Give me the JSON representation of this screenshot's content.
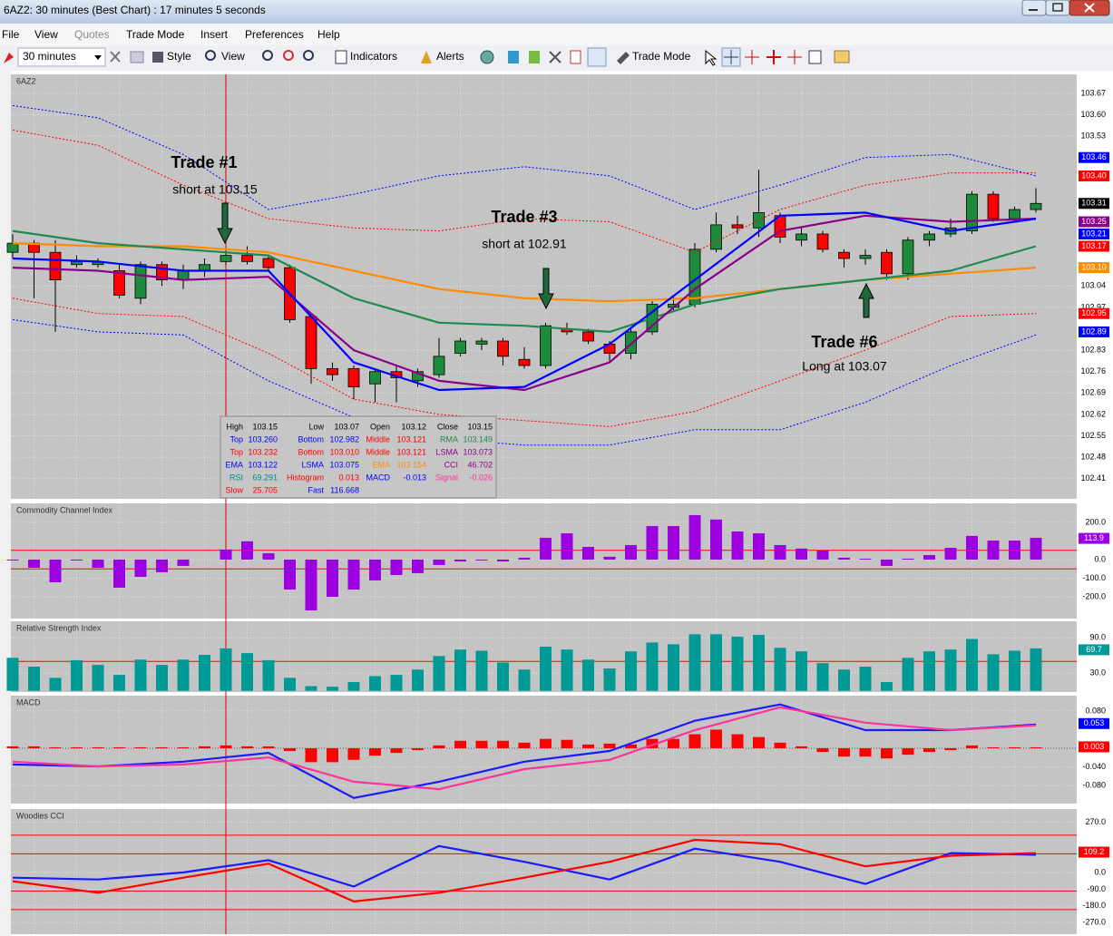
{
  "window": {
    "title": "6AZ2: 30 minutes (Best Chart) : 17 minutes 5 seconds"
  },
  "menu": [
    "File",
    "View",
    "Quotes",
    "Trade Mode",
    "Insert",
    "Preferences",
    "Help"
  ],
  "toolbar": {
    "timeframe": "30 minutes",
    "buttons": [
      "Style",
      "View",
      "Indicators",
      "Alerts",
      "Trade Mode"
    ]
  },
  "chart_data": [
    {
      "type": "candlestick",
      "label": "6AZ2",
      "open": [
        103.15,
        103.18,
        103.15,
        103.11,
        103.11,
        103.09,
        103.0,
        103.11,
        103.06,
        103.09,
        103.12,
        103.14,
        103.13,
        103.1,
        102.94,
        102.77,
        102.77,
        102.72,
        102.76,
        102.73,
        102.75,
        102.82,
        102.85,
        102.86,
        102.8,
        102.78,
        102.9,
        102.89,
        102.85,
        102.82,
        102.89,
        102.97,
        102.98,
        103.16,
        103.24,
        103.23,
        103.27,
        103.19,
        103.21,
        103.15,
        103.13,
        103.15,
        103.08,
        103.19,
        103.21,
        103.22,
        103.34,
        103.26,
        103.29
      ],
      "high": [
        103.21,
        103.19,
        103.19,
        103.14,
        103.13,
        103.11,
        103.12,
        103.12,
        103.11,
        103.13,
        103.16,
        103.17,
        103.14,
        103.11,
        102.95,
        102.79,
        102.78,
        102.77,
        102.78,
        102.77,
        102.87,
        102.87,
        102.87,
        102.87,
        102.84,
        102.92,
        102.92,
        102.9,
        102.86,
        102.9,
        102.99,
        103.01,
        103.18,
        103.28,
        103.27,
        103.42,
        103.28,
        103.23,
        103.22,
        103.16,
        103.16,
        103.16,
        103.2,
        103.22,
        103.26,
        103.35,
        103.35,
        103.3,
        103.36
      ],
      "low": [
        103.13,
        103.0,
        102.89,
        103.1,
        103.1,
        103.0,
        102.98,
        103.04,
        103.03,
        103.07,
        103.11,
        103.11,
        103.09,
        102.92,
        102.72,
        102.73,
        102.67,
        102.66,
        102.66,
        102.71,
        102.74,
        102.81,
        102.83,
        102.78,
        102.77,
        102.77,
        102.88,
        102.85,
        102.79,
        102.8,
        102.88,
        102.96,
        102.97,
        103.15,
        103.21,
        103.2,
        103.18,
        103.17,
        103.15,
        103.1,
        103.11,
        103.06,
        103.06,
        103.17,
        103.2,
        103.21,
        103.25,
        103.25,
        103.28
      ],
      "close": [
        103.18,
        103.15,
        103.06,
        103.12,
        103.12,
        103.01,
        103.11,
        103.06,
        103.09,
        103.11,
        103.14,
        103.12,
        103.1,
        102.93,
        102.77,
        102.75,
        102.71,
        102.76,
        102.74,
        102.76,
        102.81,
        102.86,
        102.86,
        102.81,
        102.78,
        102.91,
        102.89,
        102.86,
        102.82,
        102.89,
        102.98,
        102.98,
        103.16,
        103.24,
        103.23,
        103.28,
        103.2,
        103.21,
        103.16,
        103.13,
        103.14,
        103.08,
        103.19,
        103.21,
        103.23,
        103.34,
        103.26,
        103.29,
        103.31
      ],
      "up_color": "#1e8a3c",
      "down_color": "#ff0000",
      "series": [
        {
          "color": "#0000ff",
          "style": "dotted",
          "values": [
            103.63,
            103.59,
            103.47,
            103.29,
            103.34,
            103.4,
            103.43,
            103.4,
            103.29,
            103.37,
            103.46,
            103.47,
            103.4
          ]
        },
        {
          "color": "#ff0000",
          "style": "dotted",
          "values": [
            103.55,
            103.5,
            103.37,
            103.26,
            103.23,
            103.22,
            103.26,
            103.25,
            103.15,
            103.29,
            103.37,
            103.41,
            103.41
          ]
        },
        {
          "color": "#ff0000",
          "style": "dotted",
          "values": [
            103.0,
            102.95,
            102.94,
            102.82,
            102.67,
            102.62,
            102.6,
            102.58,
            102.63,
            102.73,
            102.83,
            102.94,
            102.95
          ]
        },
        {
          "color": "#0000ff",
          "style": "dotted",
          "values": [
            102.93,
            102.89,
            102.88,
            102.73,
            102.61,
            102.54,
            102.52,
            102.52,
            102.57,
            102.57,
            102.66,
            102.78,
            102.88
          ]
        },
        {
          "color": "#ff8c00",
          "style": "solid",
          "values": [
            103.18,
            103.17,
            103.17,
            103.15,
            103.09,
            103.03,
            103.0,
            102.99,
            103.0,
            103.03,
            103.06,
            103.08,
            103.1
          ]
        },
        {
          "color": "#1e8a50",
          "style": "solid",
          "values": [
            103.22,
            103.18,
            103.16,
            103.14,
            103.0,
            102.92,
            102.91,
            102.89,
            102.98,
            103.03,
            103.06,
            103.09,
            103.17
          ]
        },
        {
          "color": "#8b008b",
          "style": "solid",
          "values": [
            103.1,
            103.09,
            103.06,
            103.07,
            102.83,
            102.73,
            102.7,
            102.79,
            103.03,
            103.22,
            103.27,
            103.25,
            103.26
          ]
        },
        {
          "color": "#0000ff",
          "style": "solid",
          "values": [
            103.13,
            103.12,
            103.09,
            103.09,
            102.79,
            102.7,
            102.71,
            102.85,
            103.06,
            103.27,
            103.28,
            103.22,
            103.26
          ]
        }
      ],
      "ylim": [
        102.344,
        103.732
      ],
      "yticks": [
        103.67,
        {
          "value": 103.6,
          "label": "103.60"
        },
        103.53,
        103.04,
        102.97,
        102.83,
        102.76,
        102.69,
        102.62,
        102.55,
        102.48,
        102.41
      ],
      "tags": [
        {
          "value": 103.46,
          "color": "#0000ff"
        },
        {
          "value": 103.4,
          "label": "103.40",
          "color": "#ff0000"
        },
        {
          "value": 103.31,
          "color": "#000000"
        },
        {
          "value": 103.25,
          "color": "#8b008b"
        },
        {
          "value": 103.21,
          "color": "#0000ff"
        },
        {
          "value": 103.17,
          "color": "#ff0000"
        },
        {
          "value": 103.1,
          "label": "103.10",
          "color": "#ff8c00"
        },
        {
          "value": 102.95,
          "color": "#ff0000"
        },
        {
          "value": 102.89,
          "color": "#0000ff"
        }
      ],
      "annotations": [
        {
          "title": "Trade #1",
          "text": "short at 103.15"
        },
        {
          "title": "Trade #3",
          "text": "short at 102.91"
        },
        {
          "title": "Trade #6",
          "text": "Long at 103.07"
        }
      ]
    },
    {
      "type": "bar",
      "label": "Commodity Channel Index",
      "color": "#9d00e0",
      "values": [
        -5,
        -44,
        -122,
        -5,
        -44,
        -151,
        -93,
        -68,
        -34,
        0,
        54,
        98,
        34,
        -161,
        -273,
        -200,
        -161,
        -112,
        -83,
        -73,
        -29,
        -10,
        -5,
        -10,
        10,
        117,
        141,
        68,
        15,
        78,
        180,
        180,
        239,
        215,
        151,
        141,
        78,
        59,
        49,
        10,
        5,
        -34,
        5,
        24,
        63,
        127,
        102,
        102,
        117
      ],
      "ylim": [
        -317,
        302
      ],
      "yticks": [
        {
          "value": 200,
          "label": "200.0"
        },
        {
          "value": 0,
          "label": "0.0"
        },
        {
          "value": -100,
          "label": "-100.0"
        },
        {
          "value": -200,
          "label": "-200.0"
        }
      ],
      "ref_lines": [
        50,
        -50
      ],
      "ref_color": "#ff0000",
      "tags": [
        {
          "value": 113.9,
          "color": "#9d00e0"
        }
      ]
    },
    {
      "type": "bar",
      "label": "Relative Strength Index",
      "color": "#009a96",
      "values": [
        56,
        41,
        22,
        52,
        44,
        27,
        53,
        44,
        53,
        61,
        72,
        64,
        52,
        22,
        8,
        7,
        15,
        25,
        27,
        36,
        59,
        70,
        68,
        48,
        36,
        75,
        70,
        53,
        38,
        67,
        82,
        79,
        96,
        96,
        92,
        95,
        73,
        67,
        47,
        36,
        41,
        15,
        56,
        67,
        70,
        88,
        62,
        68,
        72
      ],
      "ylim": [
        -2,
        118
      ],
      "yticks": [
        {
          "value": 90,
          "label": "90.0"
        },
        {
          "value": 30,
          "label": "30.0"
        }
      ],
      "ref_lines": [
        50
      ],
      "ref_color": "#ff0000",
      "tags": [
        {
          "value": 69.7,
          "color": "#009a96"
        }
      ]
    },
    {
      "type": "bar",
      "label": "MACD",
      "color": "#ff0000",
      "values": [
        0.004,
        0.004,
        0.002,
        0.002,
        0.002,
        0.002,
        0.002,
        0.002,
        0.002,
        0.004,
        0.006,
        0.004,
        0.004,
        -0.006,
        -0.03,
        -0.03,
        -0.025,
        -0.016,
        -0.01,
        -0.004,
        0.006,
        0.016,
        0.016,
        0.016,
        0.012,
        0.02,
        0.018,
        0.008,
        0.01,
        0.008,
        0.02,
        0.02,
        0.03,
        0.04,
        0.03,
        0.024,
        0.012,
        0.004,
        -0.008,
        -0.018,
        -0.018,
        -0.022,
        -0.014,
        -0.008,
        -0.004,
        0.006,
        0.002,
        0.002,
        0.002
      ],
      "series": [
        {
          "color": "#1a1aff",
          "style": "solid",
          "values": [
            -0.035,
            -0.039,
            -0.029,
            -0.01,
            -0.107,
            -0.072,
            -0.029,
            -0.006,
            0.059,
            0.094,
            0.039,
            0.039,
            0.051
          ]
        },
        {
          "color": "#ff3399",
          "style": "solid",
          "values": [
            -0.029,
            -0.039,
            -0.035,
            -0.02,
            -0.072,
            -0.088,
            -0.045,
            -0.025,
            0.039,
            0.088,
            0.055,
            0.039,
            0.049
          ]
        }
      ],
      "ylim": [
        -0.119,
        0.113
      ],
      "yticks": [
        {
          "value": 0.08,
          "label": "0.080"
        },
        {
          "value": -0.04,
          "label": "-0.040"
        },
        {
          "value": -0.08,
          "label": "-0.080"
        }
      ],
      "ref_lines": [
        0
      ],
      "ref_color": "#555555",
      "tags": [
        {
          "value": 0.053,
          "color": "#0000ff"
        },
        {
          "value": 0.003,
          "color": "#ff0000"
        }
      ]
    },
    {
      "type": "line",
      "label": "Woodies CCI",
      "series": [
        {
          "color": "#1a1aff",
          "style": "solid",
          "values": [
            -28,
            -38,
            0,
            66,
            -76,
            142,
            57,
            -38,
            128,
            57,
            -62,
            104,
            95
          ]
        },
        {
          "color": "#ff0000",
          "style": "solid",
          "values": [
            -47,
            -109,
            -28,
            47,
            -156,
            -109,
            -28,
            57,
            175,
            152,
            33,
            90,
            104
          ]
        }
      ],
      "ylim": [
        -332,
        341
      ],
      "yticks": [
        {
          "value": 270,
          "label": "270.0"
        },
        {
          "value": 0,
          "label": "0.0"
        },
        {
          "value": -90,
          "label": "-90.0"
        },
        {
          "value": -180,
          "label": "-180.0"
        },
        {
          "value": -270,
          "label": "-270.0"
        }
      ],
      "ref_lines": [
        200,
        100,
        -100,
        -200
      ],
      "ref_color": "#ff0000",
      "tags": [
        {
          "value": 109.2,
          "color": "#ff0000"
        }
      ]
    }
  ],
  "info_box": {
    "rows": [
      [
        {
          "label": "High",
          "value": "103.15",
          "color": "#000000"
        },
        {
          "label": "Low",
          "value": "103.07",
          "color": "#000000"
        },
        {
          "label": "Open",
          "value": "103.12",
          "color": "#000000"
        },
        {
          "label": "Close",
          "value": "103.15",
          "color": "#000000"
        }
      ],
      [
        {
          "label": "Top",
          "value": "103.260",
          "color": "#0000ff"
        },
        {
          "label": "Bottom",
          "value": "102.982",
          "color": "#0000ff"
        },
        {
          "label": "Middle",
          "value": "103.121",
          "color": "#ff0000"
        },
        {
          "label": "RMA",
          "value": "103.149",
          "color": "#1e8a50"
        }
      ],
      [
        {
          "label": "Top",
          "value": "103.232",
          "color": "#ff0000"
        },
        {
          "label": "Bottom",
          "value": "103.010",
          "color": "#ff0000"
        },
        {
          "label": "Middle",
          "value": "103.121",
          "color": "#ff0000"
        },
        {
          "label": "LSMA",
          "value": "103.073",
          "color": "#8b008b"
        }
      ],
      [
        {
          "label": "EMA",
          "value": "103.122",
          "color": "#0000ff"
        },
        {
          "label": "LSMA",
          "value": "103.075",
          "color": "#0000ff"
        },
        {
          "label": "EMA",
          "value": "103.154",
          "color": "#ff8c00"
        },
        {
          "label": "CCI",
          "value": "46.702",
          "color": "#8b008b"
        }
      ],
      [
        {
          "label": "RSI",
          "value": "69.291",
          "color": "#008b8b"
        },
        {
          "label": "Histogram",
          "value": "0.013",
          "color": "#ff0000"
        },
        {
          "label": "MACD",
          "value": "-0.013",
          "color": "#0000ff"
        },
        {
          "label": "Signal",
          "value": "-0.026",
          "color": "#ff3399"
        }
      ],
      [
        {
          "label": "Slow",
          "value": "25.705",
          "color": "#ff0000"
        },
        {
          "label": "Fast",
          "value": "116.668",
          "color": "#0000ff"
        }
      ]
    ]
  }
}
